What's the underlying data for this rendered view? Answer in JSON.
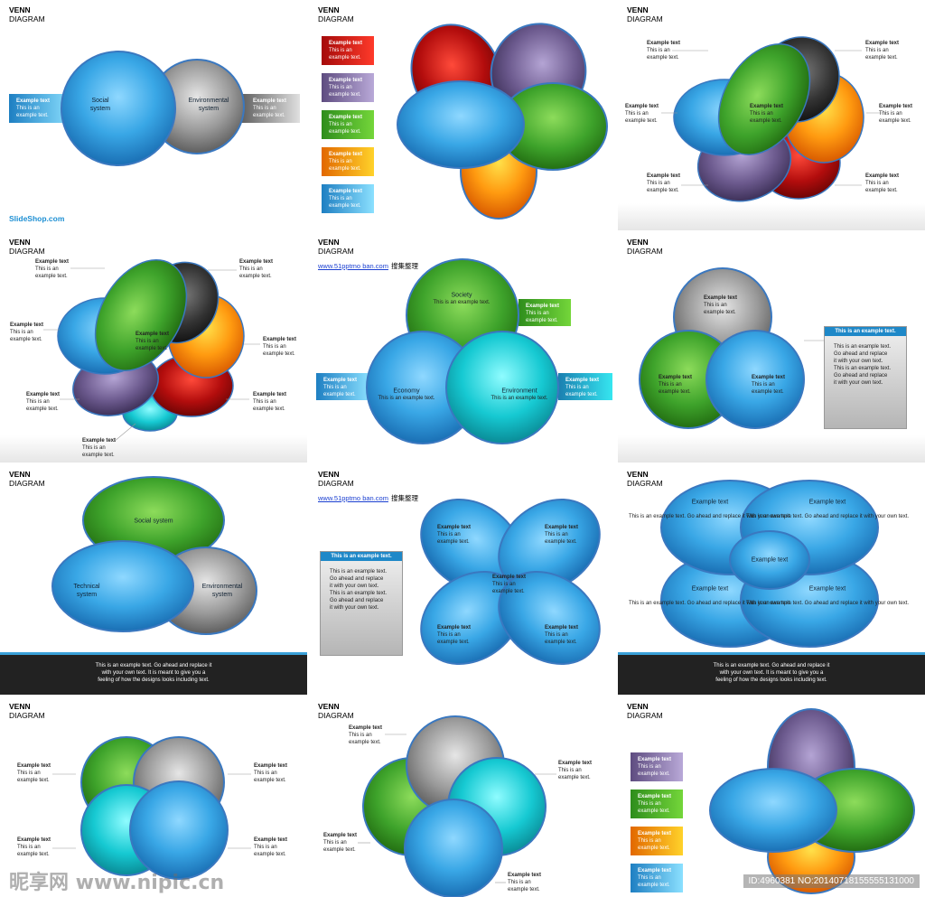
{
  "slide_title_top": "VENN",
  "slide_title_bottom": "DIAGRAM",
  "example_text": "Example text",
  "example_body": "This is an\nexample text.",
  "s1": {
    "social": "Social\nsystem",
    "environmental": "Environmental\nsystem",
    "brand": "SlideShop.com"
  },
  "s5": {
    "link": "www.51pptmo ban.com",
    "link_suffix": "搜集整理",
    "society": "Society",
    "economy": "Economy",
    "environment": "Environment"
  },
  "s6": {
    "panel_title": "This is an example text.",
    "panel_body": "This is an example text.\nGo ahead and replace\nit with your own text.\nThis is an example text.\nGo ahead and replace\nit with your own text."
  },
  "s7": {
    "social": "Social system",
    "technical": "Technical\nsystem",
    "environmental": "Environmental\nsystem"
  },
  "footer_text": "This is an example text. Go ahead and replace it\nwith your own text. It is meant to give you a\nfeeling of how the designs looks including text.",
  "s9_block": "This is an example text.\nGo ahead and replace\nit with your own text.",
  "watermark": "昵享网 www.nipic.cn",
  "id_text": "ID:4960381 NO:20140718155555131000",
  "colors": {
    "blue": "#2f9be0",
    "green": "#43a82a",
    "grey": "#8a8a8a",
    "red": "#b01010",
    "purple": "#6b5a8c",
    "orange": "#f08a00",
    "cyan": "#13c7cf",
    "dark": "#2a2a2a"
  }
}
